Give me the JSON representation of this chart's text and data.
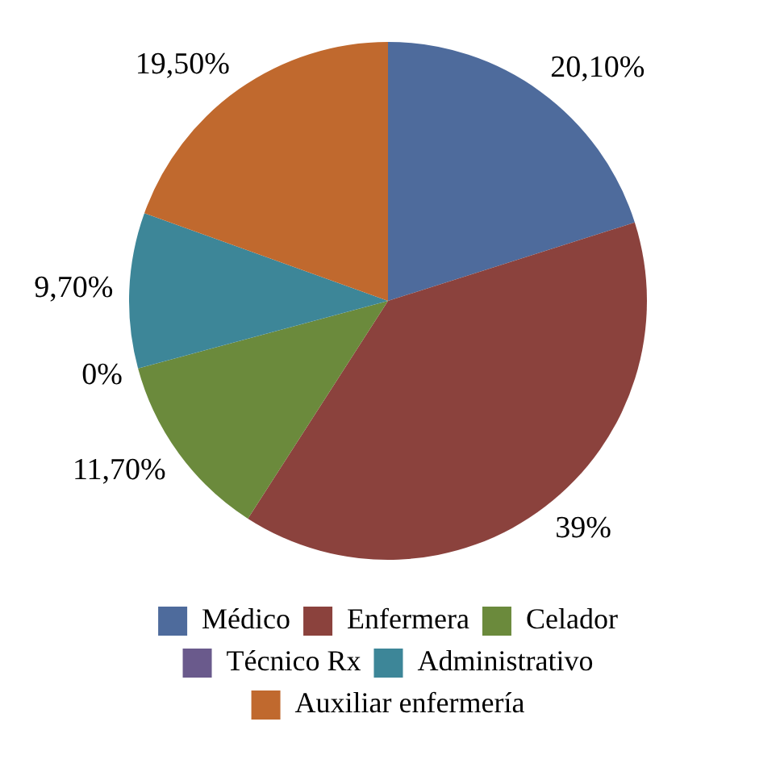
{
  "chart_data": {
    "type": "pie",
    "categories": [
      "Médico",
      "Enfermera",
      "Celador",
      "Técnico Rx",
      "Administrativo",
      "Auxiliar enfermería"
    ],
    "values": [
      20.1,
      39,
      11.7,
      0,
      9.7,
      19.5
    ],
    "value_labels": [
      "20,10%",
      "39%",
      "11,70%",
      "0%",
      "9,70%",
      "19,50%"
    ],
    "colors": [
      "#4e6b9c",
      "#8b423d",
      "#6b8a3c",
      "#6a5a8c",
      "#3d8698",
      "#c0692e"
    ],
    "legend": "bottom"
  }
}
